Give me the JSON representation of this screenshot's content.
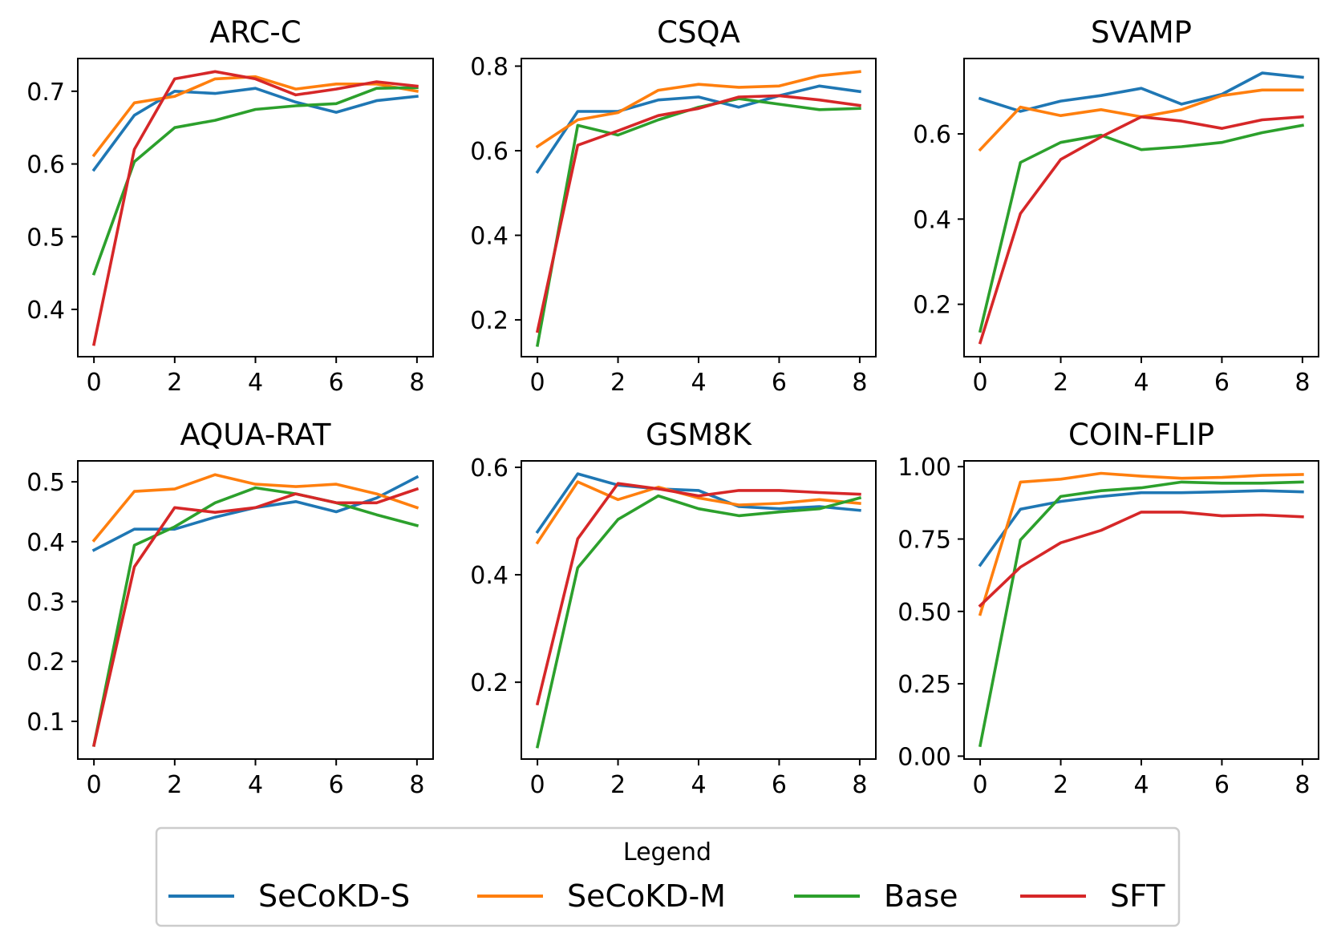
{
  "chart_data": [
    {
      "type": "line",
      "title": "ARC-C",
      "x": [
        0,
        1,
        2,
        3,
        4,
        5,
        6,
        7,
        8
      ],
      "xlim": [
        -0.4,
        8.4
      ],
      "ylim": [
        0.335,
        0.745
      ],
      "xticks": [
        0,
        2,
        4,
        6,
        8
      ],
      "yticks": [
        0.4,
        0.5,
        0.6,
        0.7
      ],
      "ytick_labels": [
        "0.4",
        "0.5",
        "0.6",
        "0.7"
      ],
      "series": [
        {
          "name": "SeCoKD-S",
          "values": [
            0.592,
            0.667,
            0.7,
            0.697,
            0.704,
            0.685,
            0.671,
            0.687,
            0.693
          ]
        },
        {
          "name": "SeCoKD-M",
          "values": [
            0.612,
            0.684,
            0.693,
            0.717,
            0.72,
            0.703,
            0.71,
            0.71,
            0.7
          ]
        },
        {
          "name": "Base",
          "values": [
            0.449,
            0.603,
            0.65,
            0.66,
            0.675,
            0.68,
            0.683,
            0.704,
            0.705
          ]
        },
        {
          "name": "SFT",
          "values": [
            0.352,
            0.62,
            0.717,
            0.727,
            0.717,
            0.695,
            0.703,
            0.713,
            0.707
          ]
        }
      ]
    },
    {
      "type": "line",
      "title": "CSQA",
      "x": [
        0,
        1,
        2,
        3,
        4,
        5,
        6,
        7,
        8
      ],
      "xlim": [
        -0.4,
        8.4
      ],
      "ylim": [
        0.113,
        0.818
      ],
      "xticks": [
        0,
        2,
        4,
        6,
        8
      ],
      "yticks": [
        0.2,
        0.4,
        0.6,
        0.8
      ],
      "ytick_labels": [
        "0.2",
        "0.4",
        "0.6",
        "0.8"
      ],
      "series": [
        {
          "name": "SeCoKD-S",
          "values": [
            0.55,
            0.693,
            0.693,
            0.72,
            0.727,
            0.703,
            0.73,
            0.753,
            0.74
          ]
        },
        {
          "name": "SeCoKD-M",
          "values": [
            0.61,
            0.673,
            0.69,
            0.743,
            0.757,
            0.75,
            0.753,
            0.777,
            0.787
          ]
        },
        {
          "name": "Base",
          "values": [
            0.14,
            0.66,
            0.637,
            0.673,
            0.703,
            0.723,
            0.71,
            0.697,
            0.7
          ]
        },
        {
          "name": "SFT",
          "values": [
            0.173,
            0.613,
            0.647,
            0.683,
            0.7,
            0.727,
            0.73,
            0.72,
            0.707
          ]
        }
      ]
    },
    {
      "type": "line",
      "title": "SVAMP",
      "x": [
        0,
        1,
        2,
        3,
        4,
        5,
        6,
        7,
        8
      ],
      "xlim": [
        -0.4,
        8.4
      ],
      "ylim": [
        0.077,
        0.777
      ],
      "xticks": [
        0,
        2,
        4,
        6,
        8
      ],
      "yticks": [
        0.2,
        0.4,
        0.6
      ],
      "ytick_labels": [
        "0.2",
        "0.4",
        "0.6"
      ],
      "series": [
        {
          "name": "SeCoKD-S",
          "values": [
            0.683,
            0.653,
            0.677,
            0.69,
            0.707,
            0.67,
            0.693,
            0.743,
            0.733
          ]
        },
        {
          "name": "SeCoKD-M",
          "values": [
            0.563,
            0.663,
            0.643,
            0.657,
            0.64,
            0.657,
            0.69,
            0.703,
            0.703
          ]
        },
        {
          "name": "Base",
          "values": [
            0.137,
            0.533,
            0.58,
            0.597,
            0.563,
            0.57,
            0.58,
            0.603,
            0.62
          ]
        },
        {
          "name": "SFT",
          "values": [
            0.11,
            0.413,
            0.54,
            0.593,
            0.64,
            0.63,
            0.613,
            0.633,
            0.64
          ]
        }
      ]
    },
    {
      "type": "line",
      "title": "AQUA-RAT",
      "x": [
        0,
        1,
        2,
        3,
        4,
        5,
        6,
        7,
        8
      ],
      "xlim": [
        -0.4,
        8.4
      ],
      "ylim": [
        0.037,
        0.535
      ],
      "xticks": [
        0,
        2,
        4,
        6,
        8
      ],
      "yticks": [
        0.1,
        0.2,
        0.3,
        0.4,
        0.5
      ],
      "ytick_labels": [
        "0.1",
        "0.2",
        "0.3",
        "0.4",
        "0.5"
      ],
      "series": [
        {
          "name": "SeCoKD-S",
          "values": [
            0.386,
            0.421,
            0.421,
            0.441,
            0.457,
            0.467,
            0.45,
            0.473,
            0.508
          ]
        },
        {
          "name": "SeCoKD-M",
          "values": [
            0.402,
            0.484,
            0.488,
            0.512,
            0.496,
            0.492,
            0.496,
            0.48,
            0.457
          ]
        },
        {
          "name": "Base",
          "values": [
            0.06,
            0.394,
            0.425,
            0.465,
            0.49,
            0.48,
            0.465,
            0.445,
            0.427
          ]
        },
        {
          "name": "SFT",
          "values": [
            0.06,
            0.358,
            0.457,
            0.449,
            0.457,
            0.48,
            0.465,
            0.465,
            0.488
          ]
        }
      ]
    },
    {
      "type": "line",
      "title": "GSM8K",
      "x": [
        0,
        1,
        2,
        3,
        4,
        5,
        6,
        7,
        8
      ],
      "xlim": [
        -0.4,
        8.4
      ],
      "ylim": [
        0.057,
        0.612
      ],
      "xticks": [
        0,
        2,
        4,
        6,
        8
      ],
      "yticks": [
        0.2,
        0.4,
        0.6
      ],
      "ytick_labels": [
        "0.2",
        "0.4",
        "0.6"
      ],
      "series": [
        {
          "name": "SeCoKD-S",
          "values": [
            0.48,
            0.588,
            0.567,
            0.56,
            0.557,
            0.527,
            0.523,
            0.527,
            0.52
          ]
        },
        {
          "name": "SeCoKD-M",
          "values": [
            0.46,
            0.573,
            0.54,
            0.563,
            0.543,
            0.53,
            0.533,
            0.54,
            0.533
          ]
        },
        {
          "name": "Base",
          "values": [
            0.08,
            0.413,
            0.503,
            0.547,
            0.523,
            0.51,
            0.517,
            0.523,
            0.543
          ]
        },
        {
          "name": "SFT",
          "values": [
            0.16,
            0.467,
            0.57,
            0.56,
            0.547,
            0.557,
            0.557,
            0.553,
            0.55
          ]
        }
      ]
    },
    {
      "type": "line",
      "title": "COIN-FLIP",
      "x": [
        0,
        1,
        2,
        3,
        4,
        5,
        6,
        7,
        8
      ],
      "xlim": [
        -0.4,
        8.4
      ],
      "ylim": [
        -0.01,
        1.02
      ],
      "xticks": [
        0,
        2,
        4,
        6,
        8
      ],
      "yticks": [
        0.0,
        0.25,
        0.5,
        0.75,
        1.0
      ],
      "ytick_labels": [
        "0.00",
        "0.25",
        "0.50",
        "0.75",
        "1.00"
      ],
      "series": [
        {
          "name": "SeCoKD-S",
          "values": [
            0.66,
            0.853,
            0.88,
            0.897,
            0.91,
            0.91,
            0.913,
            0.917,
            0.913
          ]
        },
        {
          "name": "SeCoKD-M",
          "values": [
            0.49,
            0.947,
            0.957,
            0.977,
            0.967,
            0.96,
            0.963,
            0.97,
            0.973
          ]
        },
        {
          "name": "Base",
          "values": [
            0.037,
            0.747,
            0.897,
            0.917,
            0.927,
            0.947,
            0.943,
            0.943,
            0.947
          ]
        },
        {
          "name": "SFT",
          "values": [
            0.52,
            0.653,
            0.737,
            0.78,
            0.843,
            0.843,
            0.83,
            0.833,
            0.827
          ]
        }
      ]
    }
  ],
  "legend": {
    "title": "Legend",
    "position": "bottom-center",
    "entries": [
      {
        "label": "SeCoKD-S",
        "color": "#1f77b4"
      },
      {
        "label": "SeCoKD-M",
        "color": "#ff7f0e"
      },
      {
        "label": "Base",
        "color": "#2ca02c"
      },
      {
        "label": "SFT",
        "color": "#d62728"
      }
    ]
  }
}
